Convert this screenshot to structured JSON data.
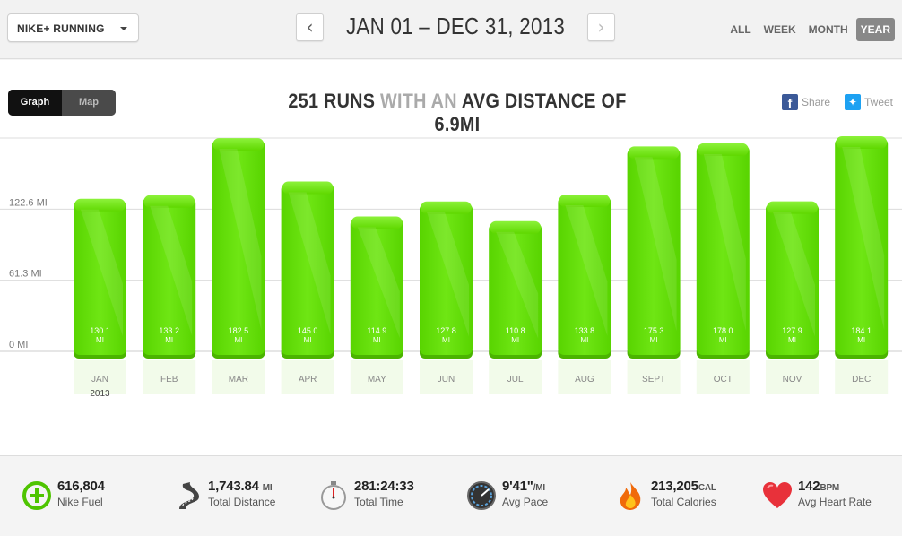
{
  "header": {
    "app_selector": "NIKE+ RUNNING",
    "date_range": "JAN 01 – DEC 31, 2013",
    "prev_label": "‹",
    "next_label": "›",
    "period_tabs": [
      {
        "label": "ALL",
        "active": false
      },
      {
        "label": "WEEK",
        "active": false
      },
      {
        "label": "MONTH",
        "active": false
      },
      {
        "label": "YEAR",
        "active": true
      }
    ]
  },
  "view_toggle": {
    "graph": "Graph",
    "map": "Map",
    "active": "Graph"
  },
  "headline": {
    "part1": "251 RUNS",
    "part2": "WITH AN",
    "part3": "AVG DISTANCE OF 6.9MI"
  },
  "share": {
    "facebook": "Share",
    "twitter": "Tweet"
  },
  "chart_data": {
    "type": "bar",
    "categories": [
      "JAN",
      "FEB",
      "MAR",
      "APR",
      "MAY",
      "JUN",
      "JUL",
      "AUG",
      "SEPT",
      "OCT",
      "NOV",
      "DEC"
    ],
    "values": [
      130.1,
      133.2,
      182.5,
      145.0,
      114.9,
      127.8,
      110.8,
      133.8,
      175.3,
      178.0,
      127.9,
      184.1
    ],
    "value_unit": "MI",
    "year_label": "2013",
    "y_ticks": [
      "0 MI",
      "61.3 MI",
      "122.6 MI",
      "184.1 MI"
    ],
    "ylim": [
      0,
      184.1
    ],
    "grid": true,
    "bar_color": "#62e000"
  },
  "summary": [
    {
      "icon": "nike-fuel-icon",
      "value": "616,804",
      "unit": "",
      "label": "Nike Fuel"
    },
    {
      "icon": "road-icon",
      "value": "1,743.84",
      "unit": "MI",
      "label": "Total Distance"
    },
    {
      "icon": "stopwatch-icon",
      "value": "281:24:33",
      "unit": "",
      "label": "Total Time"
    },
    {
      "icon": "speedometer-icon",
      "value": "9'41\"",
      "unit": "/MI",
      "label": "Avg Pace"
    },
    {
      "icon": "flame-icon",
      "value": "213,205",
      "unit": "CAL",
      "label": "Total Calories"
    },
    {
      "icon": "heart-icon",
      "value": "142",
      "unit": "BPM",
      "label": "Avg Heart Rate"
    }
  ]
}
